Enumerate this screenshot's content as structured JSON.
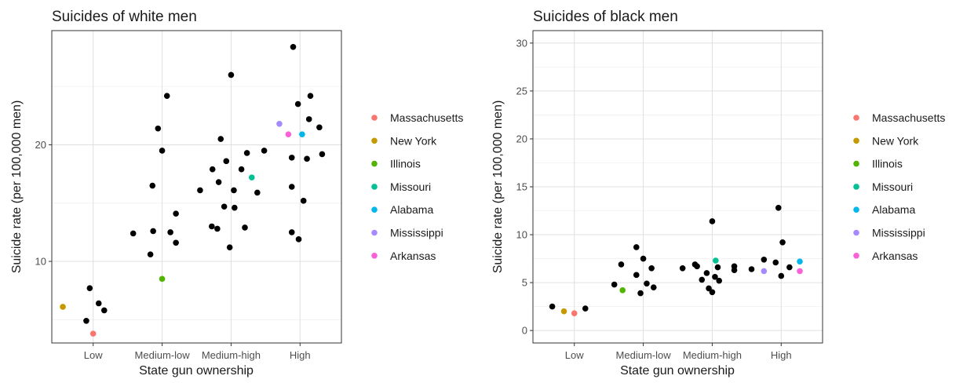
{
  "chart_data": [
    {
      "type": "scatter",
      "title": "Suicides of white men",
      "xlabel": "State gun ownership",
      "ylabel": "Suicide rate (per 100,000 men)",
      "categories": [
        "Low",
        "Medium-low",
        "Medium-high",
        "High"
      ],
      "ylim": [
        3.0,
        29.8
      ],
      "yticks": [
        10,
        20
      ],
      "ytick_labels": [
        "10",
        "20"
      ],
      "grid": true,
      "legend_position": "right",
      "legend": [
        {
          "label": "Massachusetts",
          "color": "#F8766D"
        },
        {
          "label": "New York",
          "color": "#C49A00"
        },
        {
          "label": "Illinois",
          "color": "#53B400"
        },
        {
          "label": "Missouri",
          "color": "#00C094"
        },
        {
          "label": "Alabama",
          "color": "#00B6EB"
        },
        {
          "label": "Mississippi",
          "color": "#A58AFF"
        },
        {
          "label": "Arkansas",
          "color": "#FB61D7"
        }
      ],
      "points": [
        {
          "x": 1,
          "dx": -0.44,
          "y": 6.1,
          "state": "New York"
        },
        {
          "x": 1,
          "dx": -0.1,
          "y": 4.9
        },
        {
          "x": 1,
          "dx": -0.05,
          "y": 7.7
        },
        {
          "x": 1,
          "dx": 0.0,
          "y": 3.8,
          "state": "Massachusetts"
        },
        {
          "x": 1,
          "dx": 0.08,
          "y": 6.4
        },
        {
          "x": 1,
          "dx": 0.16,
          "y": 5.8
        },
        {
          "x": 2,
          "dx": -0.42,
          "y": 12.4
        },
        {
          "x": 2,
          "dx": -0.17,
          "y": 10.6
        },
        {
          "x": 2,
          "dx": -0.14,
          "y": 16.5
        },
        {
          "x": 2,
          "dx": -0.13,
          "y": 12.6
        },
        {
          "x": 2,
          "dx": -0.06,
          "y": 21.4
        },
        {
          "x": 2,
          "dx": 0.0,
          "y": 19.5
        },
        {
          "x": 2,
          "dx": 0.0,
          "y": 8.5,
          "state": "Illinois"
        },
        {
          "x": 2,
          "dx": 0.07,
          "y": 24.2
        },
        {
          "x": 2,
          "dx": 0.12,
          "y": 12.5
        },
        {
          "x": 2,
          "dx": 0.2,
          "y": 11.6
        },
        {
          "x": 2,
          "dx": 0.2,
          "y": 14.1
        },
        {
          "x": 3,
          "dx": -0.45,
          "y": 16.1
        },
        {
          "x": 3,
          "dx": -0.28,
          "y": 13.0
        },
        {
          "x": 3,
          "dx": -0.27,
          "y": 17.9
        },
        {
          "x": 3,
          "dx": -0.2,
          "y": 12.8
        },
        {
          "x": 3,
          "dx": -0.18,
          "y": 16.8
        },
        {
          "x": 3,
          "dx": -0.15,
          "y": 20.5
        },
        {
          "x": 3,
          "dx": -0.1,
          "y": 14.7
        },
        {
          "x": 3,
          "dx": -0.07,
          "y": 18.6
        },
        {
          "x": 3,
          "dx": -0.02,
          "y": 11.2
        },
        {
          "x": 3,
          "dx": 0.0,
          "y": 26.0
        },
        {
          "x": 3,
          "dx": 0.04,
          "y": 16.1
        },
        {
          "x": 3,
          "dx": 0.05,
          "y": 14.6
        },
        {
          "x": 3,
          "dx": 0.15,
          "y": 17.9
        },
        {
          "x": 3,
          "dx": 0.2,
          "y": 12.9
        },
        {
          "x": 3,
          "dx": 0.23,
          "y": 19.3
        },
        {
          "x": 3,
          "dx": 0.3,
          "y": 17.2,
          "state": "Missouri"
        },
        {
          "x": 3,
          "dx": 0.38,
          "y": 15.9
        },
        {
          "x": 4,
          "dx": -0.52,
          "y": 19.5
        },
        {
          "x": 4,
          "dx": -0.3,
          "y": 21.8,
          "state": "Mississippi"
        },
        {
          "x": 4,
          "dx": -0.17,
          "y": 20.9,
          "state": "Arkansas"
        },
        {
          "x": 4,
          "dx": -0.12,
          "y": 18.9
        },
        {
          "x": 4,
          "dx": -0.12,
          "y": 16.4
        },
        {
          "x": 4,
          "dx": -0.12,
          "y": 12.5
        },
        {
          "x": 4,
          "dx": -0.1,
          "y": 28.4
        },
        {
          "x": 4,
          "dx": -0.03,
          "y": 23.5
        },
        {
          "x": 4,
          "dx": -0.02,
          "y": 11.9
        },
        {
          "x": 4,
          "dx": 0.03,
          "y": 20.9,
          "state": "Alabama"
        },
        {
          "x": 4,
          "dx": 0.05,
          "y": 15.2
        },
        {
          "x": 4,
          "dx": 0.1,
          "y": 18.8
        },
        {
          "x": 4,
          "dx": 0.13,
          "y": 22.2
        },
        {
          "x": 4,
          "dx": 0.15,
          "y": 24.2
        },
        {
          "x": 4,
          "dx": 0.28,
          "y": 21.5
        },
        {
          "x": 4,
          "dx": 0.32,
          "y": 19.2
        }
      ]
    },
    {
      "type": "scatter",
      "title": "Suicides of black men",
      "xlabel": "State gun ownership",
      "ylabel": "Suicide rate (per 100,000 men)",
      "categories": [
        "Low",
        "Medium-low",
        "Medium-high",
        "High"
      ],
      "ylim": [
        -1.3,
        31.3
      ],
      "yticks": [
        0,
        5,
        10,
        15,
        20,
        25,
        30
      ],
      "ytick_labels": [
        "0",
        "5",
        "10",
        "15",
        "20",
        "25",
        "30"
      ],
      "grid": true,
      "legend_position": "right",
      "legend": [
        {
          "label": "Massachusetts",
          "color": "#F8766D"
        },
        {
          "label": "New York",
          "color": "#C49A00"
        },
        {
          "label": "Illinois",
          "color": "#53B400"
        },
        {
          "label": "Missouri",
          "color": "#00C094"
        },
        {
          "label": "Alabama",
          "color": "#00B6EB"
        },
        {
          "label": "Mississippi",
          "color": "#A58AFF"
        },
        {
          "label": "Arkansas",
          "color": "#FB61D7"
        }
      ],
      "points": [
        {
          "x": 1,
          "dx": -0.32,
          "y": 2.5
        },
        {
          "x": 1,
          "dx": -0.15,
          "y": 2.0,
          "state": "New York"
        },
        {
          "x": 1,
          "dx": 0.0,
          "y": 1.8,
          "state": "Massachusetts"
        },
        {
          "x": 1,
          "dx": 0.16,
          "y": 2.3
        },
        {
          "x": 2,
          "dx": -0.42,
          "y": 4.8
        },
        {
          "x": 2,
          "dx": -0.32,
          "y": 6.9
        },
        {
          "x": 2,
          "dx": -0.3,
          "y": 4.2,
          "state": "Illinois"
        },
        {
          "x": 2,
          "dx": -0.1,
          "y": 5.8
        },
        {
          "x": 2,
          "dx": -0.1,
          "y": 8.7
        },
        {
          "x": 2,
          "dx": -0.04,
          "y": 3.9
        },
        {
          "x": 2,
          "dx": 0.0,
          "y": 7.5
        },
        {
          "x": 2,
          "dx": 0.05,
          "y": 4.9
        },
        {
          "x": 2,
          "dx": 0.12,
          "y": 6.5
        },
        {
          "x": 2,
          "dx": 0.15,
          "y": 4.5
        },
        {
          "x": 3,
          "dx": -0.43,
          "y": 6.5
        },
        {
          "x": 3,
          "dx": -0.25,
          "y": 6.9
        },
        {
          "x": 3,
          "dx": -0.22,
          "y": 6.7
        },
        {
          "x": 3,
          "dx": -0.15,
          "y": 5.3
        },
        {
          "x": 3,
          "dx": -0.08,
          "y": 6.0
        },
        {
          "x": 3,
          "dx": -0.05,
          "y": 4.4
        },
        {
          "x": 3,
          "dx": 0.0,
          "y": 11.4
        },
        {
          "x": 3,
          "dx": 0.0,
          "y": 4.0
        },
        {
          "x": 3,
          "dx": 0.04,
          "y": 5.6
        },
        {
          "x": 3,
          "dx": 0.05,
          "y": 7.3,
          "state": "Missouri"
        },
        {
          "x": 3,
          "dx": 0.08,
          "y": 6.6
        },
        {
          "x": 3,
          "dx": 0.1,
          "y": 5.2
        },
        {
          "x": 3,
          "dx": 0.32,
          "y": 6.3
        },
        {
          "x": 3,
          "dx": 0.32,
          "y": 6.7
        },
        {
          "x": 4,
          "dx": -0.43,
          "y": 6.4
        },
        {
          "x": 4,
          "dx": -0.25,
          "y": 7.4
        },
        {
          "x": 4,
          "dx": -0.25,
          "y": 6.2,
          "state": "Mississippi"
        },
        {
          "x": 4,
          "dx": -0.08,
          "y": 7.1
        },
        {
          "x": 4,
          "dx": -0.04,
          "y": 12.8
        },
        {
          "x": 4,
          "dx": 0.0,
          "y": 5.7
        },
        {
          "x": 4,
          "dx": 0.02,
          "y": 9.2
        },
        {
          "x": 4,
          "dx": 0.12,
          "y": 6.6
        },
        {
          "x": 4,
          "dx": 0.27,
          "y": 7.2,
          "state": "Alabama"
        },
        {
          "x": 4,
          "dx": 0.27,
          "y": 6.2,
          "state": "Arkansas"
        }
      ]
    }
  ]
}
